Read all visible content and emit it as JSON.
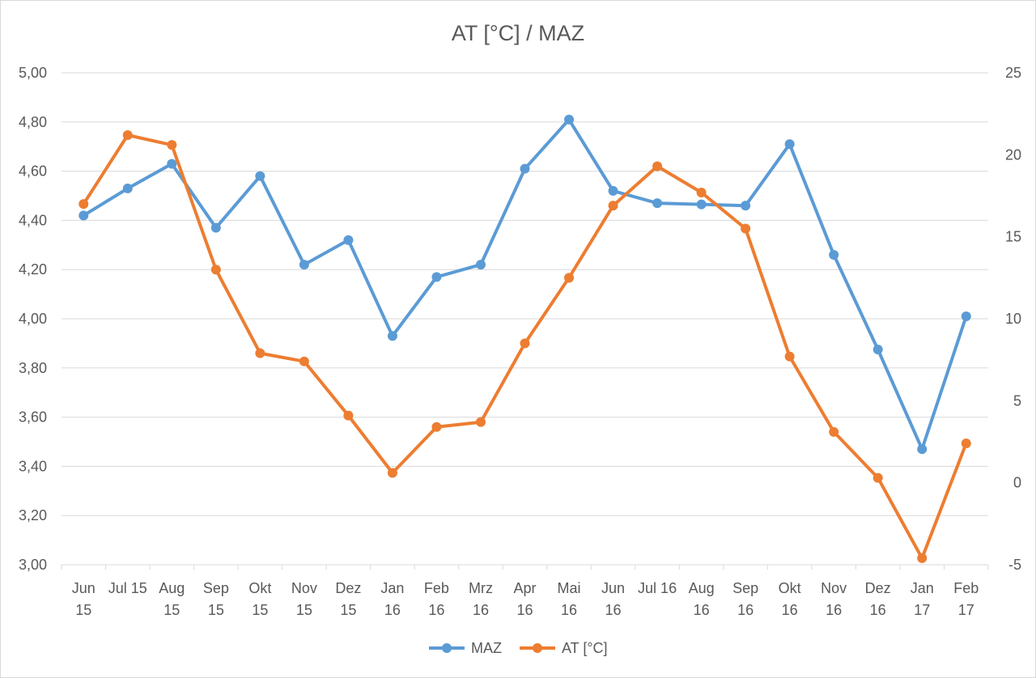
{
  "chart_data": {
    "type": "line",
    "title": "AT [°C] / MAZ",
    "categories": [
      [
        "Jun",
        "15"
      ],
      [
        "Jul 15",
        ""
      ],
      [
        "Aug",
        "15"
      ],
      [
        "Sep",
        "15"
      ],
      [
        "Okt",
        "15"
      ],
      [
        "Nov",
        "15"
      ],
      [
        "Dez",
        "15"
      ],
      [
        "Jan",
        "16"
      ],
      [
        "Feb",
        "16"
      ],
      [
        "Mrz",
        "16"
      ],
      [
        "Apr",
        "16"
      ],
      [
        "Mai",
        "16"
      ],
      [
        "Jun",
        "16"
      ],
      [
        "Jul 16",
        ""
      ],
      [
        "Aug",
        "16"
      ],
      [
        "Sep",
        "16"
      ],
      [
        "Okt",
        "16"
      ],
      [
        "Nov",
        "16"
      ],
      [
        "Dez",
        "16"
      ],
      [
        "Jan",
        "17"
      ],
      [
        "Feb",
        "17"
      ]
    ],
    "left_axis": {
      "min": 3.0,
      "max": 5.0,
      "step": 0.2,
      "ticks": [
        "3,00",
        "3,20",
        "3,40",
        "3,60",
        "3,80",
        "4,00",
        "4,20",
        "4,40",
        "4,60",
        "4,80",
        "5,00"
      ]
    },
    "right_axis": {
      "min": -5,
      "max": 25,
      "step": 5,
      "ticks": [
        "-5",
        "0",
        "5",
        "10",
        "15",
        "20",
        "25"
      ]
    },
    "grid": true,
    "legend_position": "bottom",
    "series": [
      {
        "name": "MAZ",
        "axis": "left",
        "color": "#5b9bd5",
        "values": [
          4.42,
          4.53,
          4.63,
          4.37,
          4.58,
          4.22,
          4.32,
          3.93,
          4.17,
          4.22,
          4.61,
          4.81,
          4.52,
          4.47,
          4.465,
          4.46,
          4.71,
          4.26,
          3.875,
          3.47,
          4.01
        ]
      },
      {
        "name": "AT [°C]",
        "axis": "right",
        "color": "#ed7d31",
        "values": [
          17.0,
          21.2,
          20.6,
          13.0,
          7.9,
          7.4,
          4.1,
          0.6,
          3.4,
          3.7,
          8.5,
          12.5,
          16.9,
          19.3,
          17.7,
          15.5,
          7.7,
          3.1,
          0.3,
          -4.6,
          2.4
        ]
      }
    ]
  }
}
